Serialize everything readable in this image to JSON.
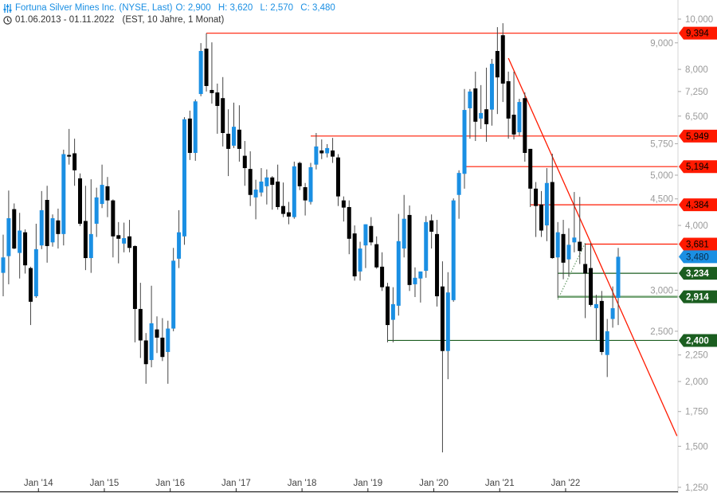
{
  "header": {
    "symbol_title": "Fortuna Silver Mines Inc. (NYSE, Last)",
    "open": "O: 2,900",
    "high": "H: 3,620",
    "low": "L: 2,570",
    "close": "C: 3,480",
    "date_range": "01.06.2013 - 01.11.2022",
    "meta": "(EST, 10 Jahre, 1 Monat)",
    "icons": [
      "settings-sliders-icon",
      "clock-icon"
    ]
  },
  "colors": {
    "up": "#1a8fe3",
    "down": "#000000",
    "resistance": "#ff1a00",
    "support": "#1b5e20",
    "support_light": "#6fa070",
    "last_price": "#1a8fe3"
  },
  "chart_data": {
    "type": "candlestick",
    "title": "Fortuna Silver Mines Inc. (NYSE, Last)",
    "interval": "1 Monat",
    "y_scale": "log",
    "ylim": [
      1.2,
      10.2
    ],
    "y_ticks": [
      {
        "value": 10.0,
        "label": "10,000"
      },
      {
        "value": 9.0,
        "label": "9,000"
      },
      {
        "value": 8.0,
        "label": "8,000"
      },
      {
        "value": 7.25,
        "label": "7,250"
      },
      {
        "value": 6.5,
        "label": "6,500"
      },
      {
        "value": 5.75,
        "label": "5,750"
      },
      {
        "value": 5.0,
        "label": "5,000"
      },
      {
        "value": 4.5,
        "label": "4,500"
      },
      {
        "value": 4.0,
        "label": "4,000"
      },
      {
        "value": 3.0,
        "label": "3,000"
      },
      {
        "value": 2.5,
        "label": "2,500"
      },
      {
        "value": 2.25,
        "label": "2,250"
      },
      {
        "value": 2.0,
        "label": "2,000"
      },
      {
        "value": 1.75,
        "label": "1,750"
      },
      {
        "value": 1.5,
        "label": "1,500"
      },
      {
        "value": 1.25,
        "label": "1,250"
      }
    ],
    "x_ticks": [
      {
        "index": 7,
        "label": "Jan '14"
      },
      {
        "index": 19,
        "label": "Jan '15"
      },
      {
        "index": 31,
        "label": "Jan '16"
      },
      {
        "index": 43,
        "label": "Jan '17"
      },
      {
        "index": 55,
        "label": "Jan '18"
      },
      {
        "index": 67,
        "label": "Jan '19"
      },
      {
        "index": 79,
        "label": "Jan '20"
      },
      {
        "index": 91,
        "label": "Jan '21"
      },
      {
        "index": 103,
        "label": "Jan '22"
      }
    ],
    "ohlc_columns": [
      "open",
      "high",
      "low",
      "close"
    ],
    "ohlc": [
      [
        3.24,
        3.84,
        2.92,
        3.47
      ],
      [
        3.49,
        4.67,
        3.08,
        4.13
      ],
      [
        4.3,
        4.41,
        3.6,
        3.61
      ],
      [
        3.54,
        4.23,
        3.16,
        3.91
      ],
      [
        3.88,
        3.93,
        3.23,
        3.35
      ],
      [
        3.31,
        3.33,
        2.57,
        2.85
      ],
      [
        2.92,
        4.03,
        2.9,
        3.6
      ],
      [
        3.66,
        4.66,
        3.6,
        4.28
      ],
      [
        4.48,
        4.77,
        3.39,
        3.65
      ],
      [
        3.71,
        4.2,
        3.64,
        4.13
      ],
      [
        4.09,
        4.31,
        3.61,
        3.85
      ],
      [
        3.85,
        5.6,
        3.66,
        5.49
      ],
      [
        5.47,
        6.14,
        5.24,
        5.43
      ],
      [
        5.51,
        5.88,
        4.77,
        5.11
      ],
      [
        4.93,
        5.04,
        3.99,
        4.03
      ],
      [
        4.08,
        4.77,
        3.28,
        3.46
      ],
      [
        3.46,
        4.91,
        3.24,
        3.85
      ],
      [
        4.03,
        4.73,
        3.8,
        4.53
      ],
      [
        4.4,
        5.24,
        4.32,
        4.79
      ],
      [
        4.76,
        4.96,
        4.15,
        4.47
      ],
      [
        4.47,
        4.49,
        3.47,
        3.81
      ],
      [
        3.83,
        4.06,
        3.38,
        3.77
      ],
      [
        3.69,
        4.05,
        3.55,
        3.78
      ],
      [
        3.81,
        4.1,
        3.55,
        3.62
      ],
      [
        3.65,
        3.66,
        2.38,
        2.76
      ],
      [
        2.76,
        3.1,
        2.22,
        2.4
      ],
      [
        2.4,
        2.48,
        1.98,
        2.16
      ],
      [
        2.2,
        3.06,
        2.13,
        2.59
      ],
      [
        2.52,
        2.67,
        2.27,
        2.43
      ],
      [
        2.43,
        2.65,
        2.19,
        2.23
      ],
      [
        2.28,
        2.62,
        1.98,
        2.53
      ],
      [
        2.53,
        3.62,
        2.5,
        3.42
      ],
      [
        3.45,
        4.28,
        3.31,
        3.88
      ],
      [
        3.81,
        6.47,
        3.67,
        6.41
      ],
      [
        6.43,
        6.66,
        5.35,
        5.52
      ],
      [
        5.52,
        7.0,
        5.33,
        6.94
      ],
      [
        7.17,
        8.99,
        7.1,
        8.68
      ],
      [
        8.77,
        9.39,
        7.25,
        7.43
      ],
      [
        7.3,
        9.02,
        6.87,
        7.2
      ],
      [
        7.22,
        7.51,
        6.01,
        6.8
      ],
      [
        7.04,
        7.73,
        5.68,
        6.03
      ],
      [
        6.01,
        6.7,
        4.98,
        5.62
      ],
      [
        5.7,
        6.9,
        5.64,
        6.2
      ],
      [
        6.12,
        6.82,
        5.31,
        5.62
      ],
      [
        5.45,
        5.82,
        4.77,
        5.16
      ],
      [
        5.14,
        5.56,
        4.36,
        4.58
      ],
      [
        4.53,
        4.9,
        4.11,
        4.69
      ],
      [
        4.63,
        5.16,
        4.55,
        4.86
      ],
      [
        4.76,
        5.13,
        4.39,
        4.95
      ],
      [
        4.95,
        4.98,
        4.29,
        4.79
      ],
      [
        4.86,
        5.24,
        4.29,
        4.34
      ],
      [
        4.36,
        4.84,
        4.15,
        4.21
      ],
      [
        4.24,
        4.44,
        4.02,
        4.16
      ],
      [
        4.15,
        5.31,
        4.12,
        5.2
      ],
      [
        5.28,
        5.31,
        4.68,
        4.76
      ],
      [
        4.74,
        4.83,
        4.18,
        4.47
      ],
      [
        4.44,
        5.28,
        4.39,
        5.18
      ],
      [
        5.24,
        6.03,
        5.13,
        5.68
      ],
      [
        5.58,
        5.86,
        5.37,
        5.51
      ],
      [
        5.51,
        5.74,
        5.41,
        5.64
      ],
      [
        5.58,
        5.9,
        5.28,
        5.43
      ],
      [
        5.41,
        5.49,
        4.36,
        4.55
      ],
      [
        4.47,
        4.55,
        4.07,
        4.33
      ],
      [
        4.34,
        4.47,
        3.52,
        3.77
      ],
      [
        3.86,
        4.0,
        3.13,
        3.19
      ],
      [
        3.26,
        3.72,
        3.13,
        3.61
      ],
      [
        3.66,
        4.02,
        3.31,
        4.02
      ],
      [
        3.99,
        4.15,
        3.66,
        3.71
      ],
      [
        3.68,
        3.81,
        3.3,
        3.32
      ],
      [
        3.33,
        3.55,
        2.99,
        3.04
      ],
      [
        3.05,
        3.1,
        2.38,
        2.57
      ],
      [
        2.63,
        3.04,
        2.38,
        2.82
      ],
      [
        2.8,
        4.21,
        2.68,
        3.73
      ],
      [
        3.61,
        4.58,
        3.47,
        4.12
      ],
      [
        4.19,
        4.37,
        2.99,
        3.07
      ],
      [
        3.08,
        3.32,
        2.91,
        3.17
      ],
      [
        3.16,
        3.26,
        2.84,
        3.26
      ],
      [
        3.27,
        4.17,
        3.17,
        4.06
      ],
      [
        4.09,
        4.2,
        3.61,
        3.89
      ],
      [
        3.85,
        4.1,
        2.79,
        2.92
      ],
      [
        3.05,
        3.41,
        1.46,
        2.29
      ],
      [
        2.29,
        3.25,
        2.02,
        2.97
      ],
      [
        2.87,
        4.51,
        2.85,
        4.47
      ],
      [
        4.58,
        5.11,
        4.12,
        5.05
      ],
      [
        5.03,
        7.33,
        4.71,
        6.68
      ],
      [
        6.73,
        7.33,
        5.88,
        7.25
      ],
      [
        7.35,
        7.92,
        5.82,
        6.34
      ],
      [
        6.43,
        7.46,
        6.14,
        6.59
      ],
      [
        6.7,
        8.06,
        5.8,
        6.27
      ],
      [
        6.69,
        8.38,
        6.23,
        8.2
      ],
      [
        8.68,
        9.65,
        6.56,
        7.72
      ],
      [
        9.31,
        9.82,
        6.92,
        7.51
      ],
      [
        7.59,
        7.92,
        5.88,
        6.43
      ],
      [
        6.54,
        7.92,
        5.86,
        5.99
      ],
      [
        6.05,
        7.02,
        5.95,
        6.92
      ],
      [
        7.04,
        7.22,
        5.31,
        5.52
      ],
      [
        5.62,
        5.62,
        4.34,
        4.71
      ],
      [
        4.71,
        4.85,
        3.8,
        4.36
      ],
      [
        4.39,
        4.66,
        3.8,
        3.91
      ],
      [
        4.0,
        5.16,
        3.73,
        4.83
      ],
      [
        4.85,
        5.5,
        3.45,
        3.46
      ],
      [
        3.47,
        4.06,
        2.9,
        3.88
      ],
      [
        3.85,
        4.1,
        3.15,
        3.39
      ],
      [
        3.44,
        3.95,
        3.19,
        3.67
      ],
      [
        3.71,
        4.64,
        3.55,
        3.79
      ],
      [
        3.72,
        4.54,
        3.37,
        3.57
      ],
      [
        3.37,
        3.69,
        2.65,
        3.23
      ],
      [
        3.31,
        3.7,
        2.79,
        2.81
      ],
      [
        2.77,
        2.94,
        2.4,
        2.82
      ],
      [
        2.86,
        2.99,
        2.25,
        2.28
      ],
      [
        2.25,
        2.64,
        2.04,
        2.5
      ],
      [
        2.64,
        3.05,
        2.54,
        2.77
      ],
      [
        2.9,
        3.62,
        2.57,
        3.48
      ]
    ],
    "levels": [
      {
        "value": 9.394,
        "label": "9,394",
        "kind": "resistance",
        "start_index": 37
      },
      {
        "value": 5.949,
        "label": "5,949",
        "kind": "resistance",
        "start_index": 56
      },
      {
        "value": 5.194,
        "label": "5,194",
        "kind": "resistance",
        "start_index": 84
      },
      {
        "value": 4.384,
        "label": "4,384",
        "kind": "resistance",
        "start_index": 96
      },
      {
        "value": 3.681,
        "label": "3,681",
        "kind": "resistance",
        "start_index": 106
      },
      {
        "value": 3.234,
        "label": "3,234",
        "kind": "support",
        "start_index": 101
      },
      {
        "value": 2.914,
        "label": "2,914",
        "kind": "support_light",
        "start_index": 101
      },
      {
        "value": 2.4,
        "label": "2,400",
        "kind": "support",
        "start_index": 70
      }
    ],
    "last_price": {
      "value": 3.48,
      "label": "3,480"
    },
    "trendlines": [
      {
        "kind": "resistance",
        "style": "solid",
        "from": [
          92,
          8.41
        ],
        "to": [
          122.7,
          1.57
        ]
      },
      {
        "kind": "support_light",
        "style": "dotted",
        "from": [
          101,
          2.88
        ],
        "to": [
          106,
          3.7
        ]
      }
    ],
    "grid": false
  }
}
